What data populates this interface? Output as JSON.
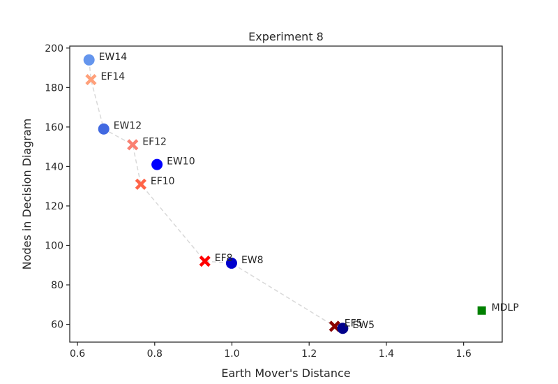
{
  "chart_data": {
    "type": "scatter",
    "title": "Experiment 8",
    "xlabel": "Earth Mover's Distance",
    "ylabel": "Nodes in Decision Diagram",
    "xlim": [
      0.58,
      1.7
    ],
    "ylim": [
      51,
      201
    ],
    "xticks": [
      0.6,
      0.8,
      1.0,
      1.2,
      1.4,
      1.6
    ],
    "yticks": [
      60,
      80,
      100,
      120,
      140,
      160,
      180,
      200
    ],
    "grid": false,
    "legend": "none",
    "points": [
      {
        "label": "EW14",
        "x": 0.63,
        "y": 194,
        "marker": "circle",
        "color": "#6495ED"
      },
      {
        "label": "EF14",
        "x": 0.635,
        "y": 184,
        "marker": "x",
        "color": "#FFA07A"
      },
      {
        "label": "EW12",
        "x": 0.668,
        "y": 159,
        "marker": "circle",
        "color": "#4169E1"
      },
      {
        "label": "EF12",
        "x": 0.743,
        "y": 151,
        "marker": "x",
        "color": "#FA8072"
      },
      {
        "label": "EW10",
        "x": 0.806,
        "y": 141,
        "marker": "circle",
        "color": "#0000FF"
      },
      {
        "label": "EF10",
        "x": 0.764,
        "y": 131,
        "marker": "x",
        "color": "#FF6347"
      },
      {
        "label": "EF8",
        "x": 0.93,
        "y": 92,
        "marker": "x",
        "color": "#FF0000"
      },
      {
        "label": "EW8",
        "x": 0.999,
        "y": 91,
        "marker": "circle",
        "color": "#0000CD"
      },
      {
        "label": "EF5",
        "x": 1.266,
        "y": 59,
        "marker": "x",
        "color": "#8B0000"
      },
      {
        "label": "EW5",
        "x": 1.287,
        "y": 58,
        "marker": "circle",
        "color": "#00008B"
      },
      {
        "label": "MDLP",
        "x": 1.647,
        "y": 67,
        "marker": "square",
        "color": "#008000"
      }
    ],
    "connector_order": [
      "EW14",
      "EF14",
      "EW12",
      "EF12",
      "EF10",
      "EF8",
      "EW8",
      "EF5",
      "EW5"
    ],
    "connector_color": "#d9d9d9"
  }
}
